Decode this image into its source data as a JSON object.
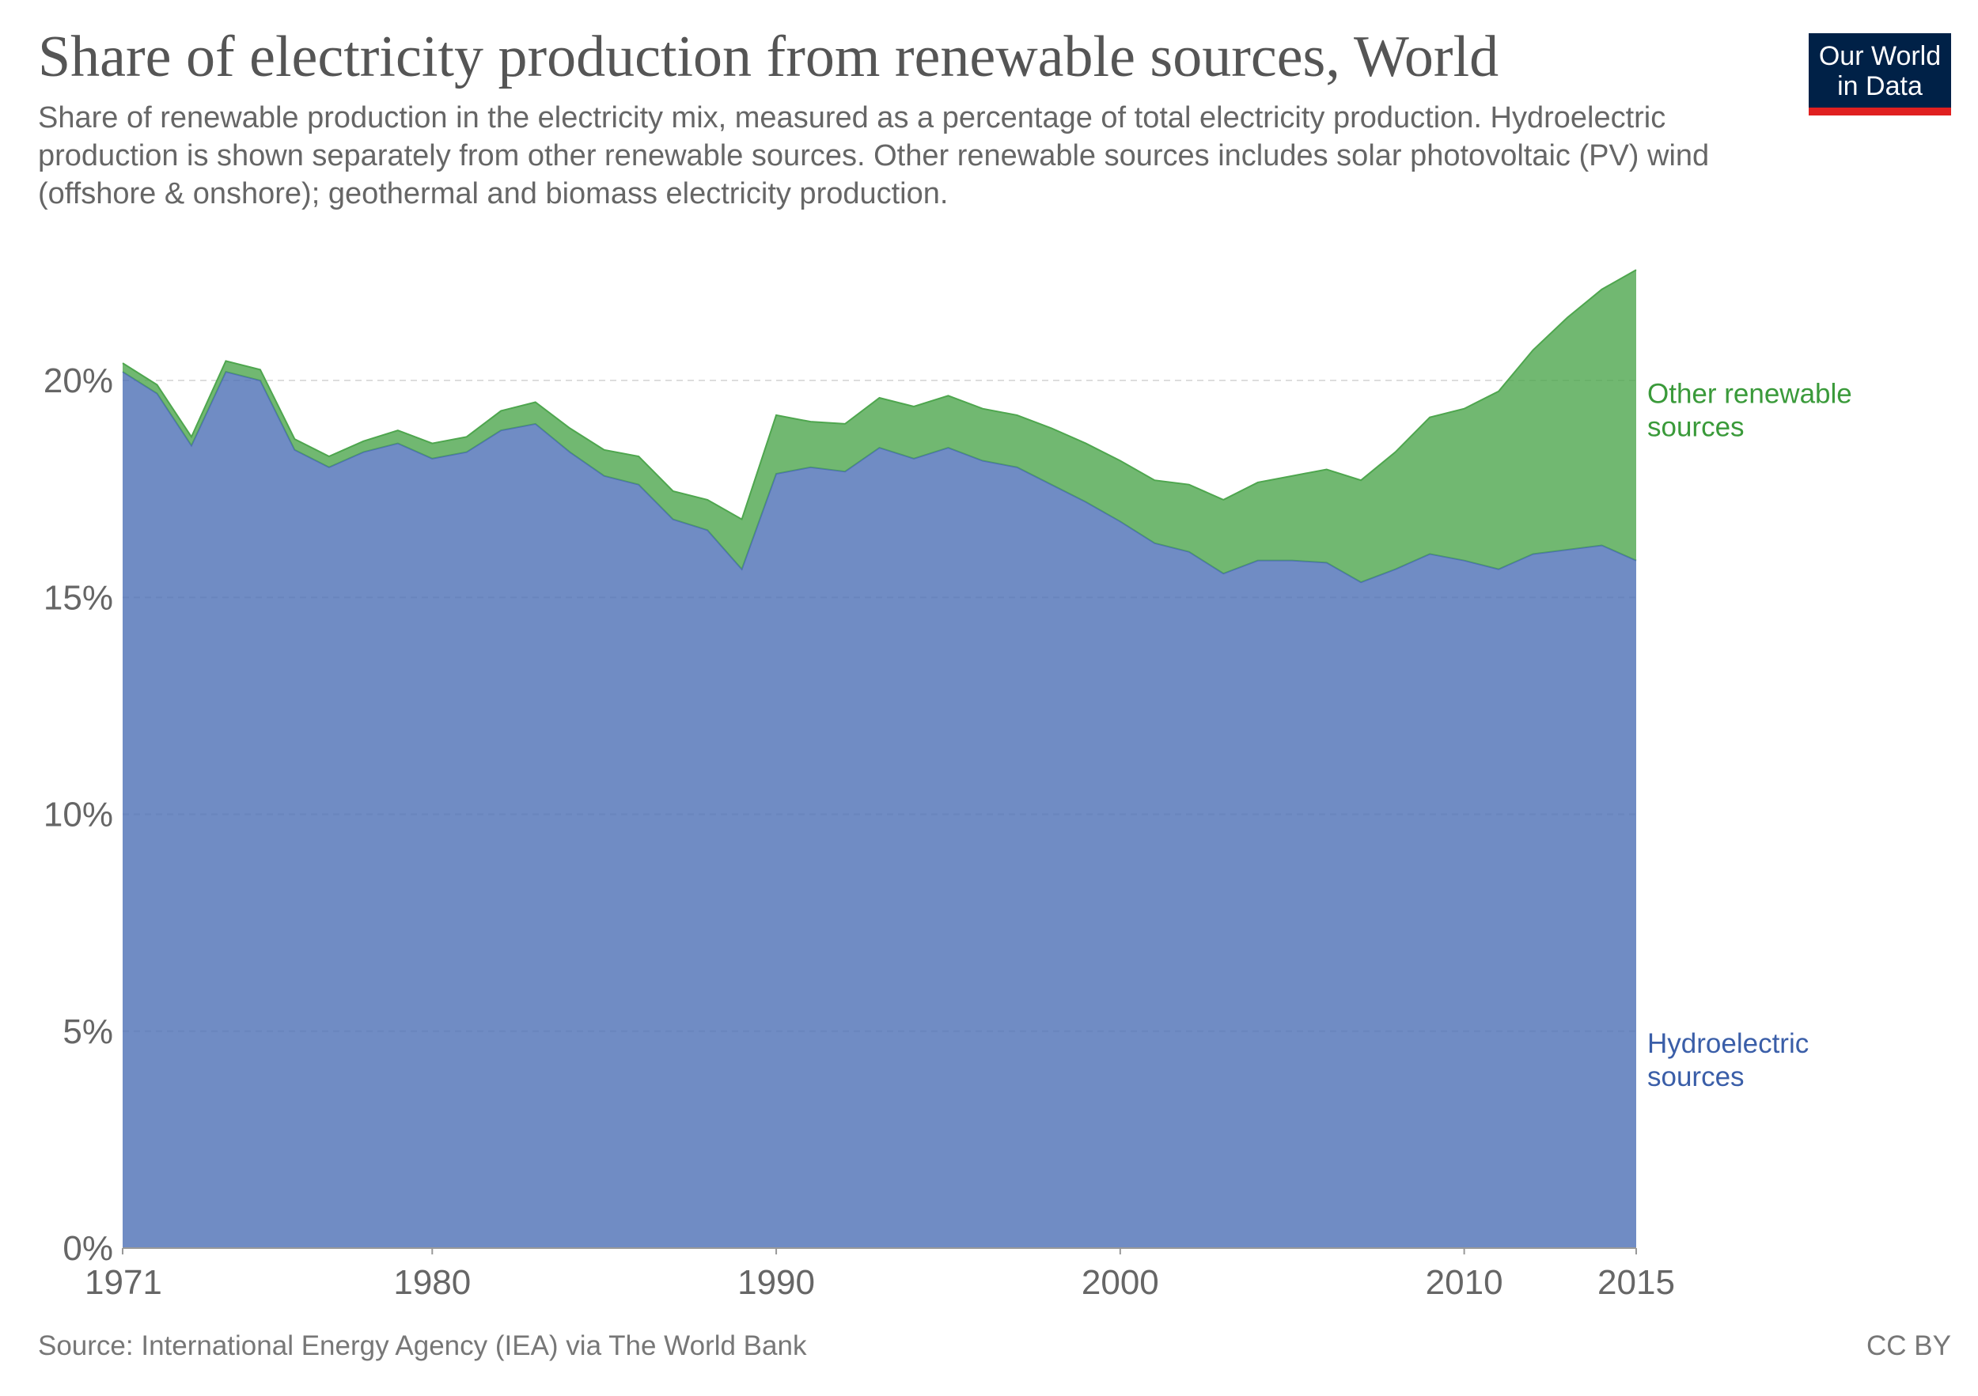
{
  "header": {
    "title": "Share of electricity production from renewable sources, World",
    "subtitle": "Share of renewable production in the electricity mix, measured as a percentage of total electricity production. Hydroelectric production is shown separately from other renewable sources. Other renewable sources includes solar photovoltaic (PV) wind (offshore & onshore); geothermal and biomass electricity production.",
    "logo_line1": "Our World",
    "logo_line2": "in Data"
  },
  "footer": {
    "source": "Source: International Energy Agency (IEA) via The World Bank",
    "license": "CC BY"
  },
  "chart_data": {
    "type": "area",
    "stacked": true,
    "x": [
      1971,
      1972,
      1973,
      1974,
      1975,
      1976,
      1977,
      1978,
      1979,
      1980,
      1981,
      1982,
      1983,
      1984,
      1985,
      1986,
      1987,
      1988,
      1989,
      1990,
      1991,
      1992,
      1993,
      1994,
      1995,
      1996,
      1997,
      1998,
      1999,
      2000,
      2001,
      2002,
      2003,
      2004,
      2005,
      2006,
      2007,
      2008,
      2009,
      2010,
      2011,
      2012,
      2013,
      2014,
      2015
    ],
    "series": [
      {
        "name": "Hydroelectric sources",
        "color": "#4c6fb5",
        "label_lines": [
          "Hydroelectric",
          "sources"
        ],
        "values": [
          20.2,
          19.7,
          18.5,
          20.2,
          20.0,
          18.4,
          18.0,
          18.35,
          18.55,
          18.2,
          18.35,
          18.85,
          19.0,
          18.35,
          17.8,
          17.6,
          16.8,
          16.55,
          15.65,
          17.85,
          18.0,
          17.9,
          18.45,
          18.2,
          18.45,
          18.15,
          18.0,
          17.6,
          17.2,
          16.75,
          16.25,
          16.05,
          15.55,
          15.85,
          15.85,
          15.8,
          15.35,
          15.65,
          16.0,
          15.85,
          15.65,
          16.0,
          16.1,
          16.2,
          15.85
        ]
      },
      {
        "name": "Other renewable sources",
        "color": "#4ea64e",
        "label_lines": [
          "Other renewable",
          "sources"
        ],
        "values": [
          0.2,
          0.2,
          0.2,
          0.25,
          0.25,
          0.25,
          0.25,
          0.25,
          0.3,
          0.35,
          0.35,
          0.45,
          0.5,
          0.55,
          0.6,
          0.65,
          0.65,
          0.7,
          1.15,
          1.35,
          1.05,
          1.1,
          1.15,
          1.2,
          1.2,
          1.2,
          1.2,
          1.3,
          1.35,
          1.4,
          1.45,
          1.55,
          1.7,
          1.8,
          1.95,
          2.15,
          2.35,
          2.7,
          3.15,
          3.5,
          4.1,
          4.7,
          5.35,
          5.9,
          6.7
        ]
      }
    ],
    "ylim": [
      0,
      22.9
    ],
    "yticks": [
      0,
      5,
      10,
      15,
      20
    ],
    "ytick_labels": [
      "0%",
      "5%",
      "10%",
      "15%",
      "20%"
    ],
    "xticks": [
      1971,
      1980,
      1990,
      2000,
      2010,
      2015
    ],
    "xtick_labels": [
      "1971",
      "1980",
      "1990",
      "2000",
      "2010",
      "2015"
    ],
    "grid": true,
    "legend": "right, inline labels"
  }
}
